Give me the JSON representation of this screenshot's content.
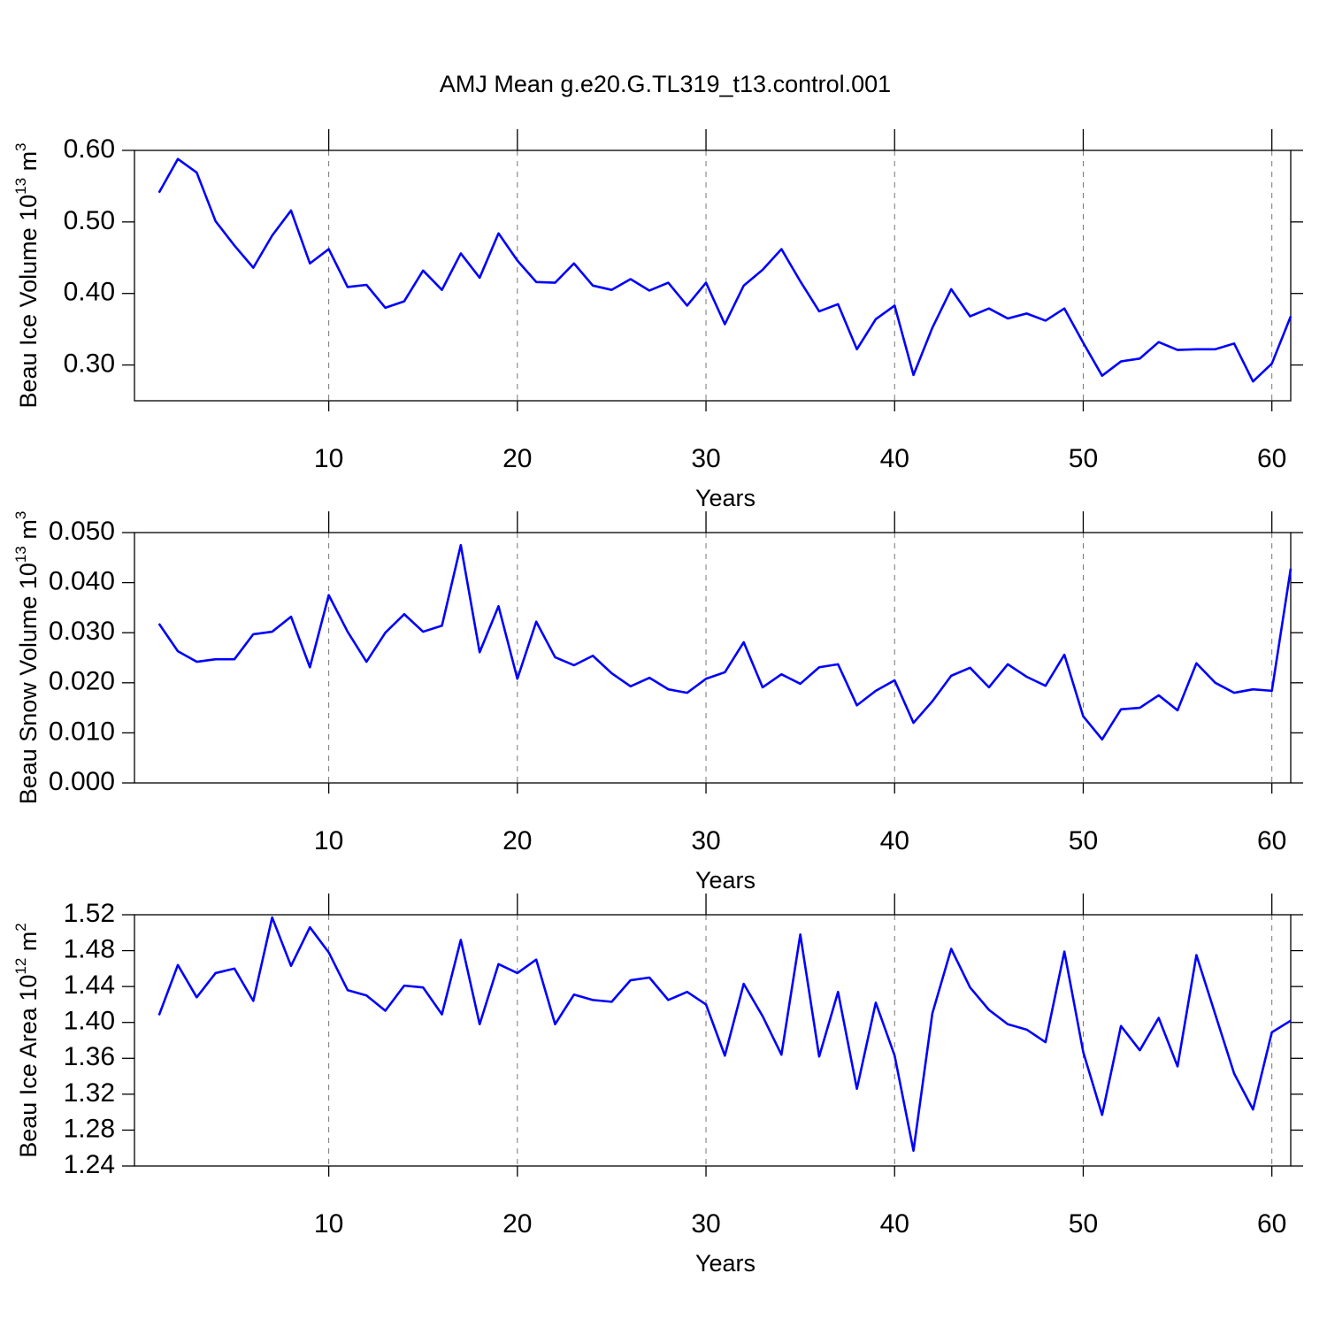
{
  "chart_data": [
    {
      "type": "line",
      "title": "AMJ Mean g.e20.G.TL319_t13.control.001",
      "y_label": [
        "Beau Ice Volume 10",
        "13",
        " m",
        "3"
      ],
      "x_label": "Years",
      "x": [
        1,
        2,
        3,
        4,
        5,
        6,
        7,
        8,
        9,
        10,
        11,
        12,
        13,
        14,
        15,
        16,
        17,
        18,
        19,
        20,
        21,
        22,
        23,
        24,
        25,
        26,
        27,
        28,
        29,
        30,
        31,
        32,
        33,
        34,
        35,
        36,
        37,
        38,
        39,
        40,
        41,
        42,
        43,
        44,
        45,
        46,
        47,
        48,
        49,
        50,
        51,
        52,
        53,
        54,
        55,
        56,
        57,
        58,
        59,
        60,
        61
      ],
      "values": [
        0.541,
        0.588,
        0.569,
        0.501,
        0.467,
        0.436,
        0.481,
        0.516,
        0.442,
        0.462,
        0.409,
        0.412,
        0.38,
        0.389,
        0.432,
        0.405,
        0.456,
        0.422,
        0.484,
        0.446,
        0.416,
        0.415,
        0.442,
        0.411,
        0.405,
        0.42,
        0.404,
        0.415,
        0.383,
        0.415,
        0.357,
        0.411,
        0.433,
        0.462,
        0.417,
        0.375,
        0.385,
        0.322,
        0.364,
        0.383,
        0.286,
        0.352,
        0.406,
        0.368,
        0.379,
        0.365,
        0.372,
        0.362,
        0.379,
        0.331,
        0.285,
        0.305,
        0.309,
        0.332,
        0.321,
        0.322,
        0.322,
        0.33,
        0.277,
        0.302,
        0.368
      ],
      "color": "#0000ff",
      "xlim": [
        -0.3,
        61
      ],
      "xticks": [
        10,
        20,
        30,
        40,
        50,
        60
      ],
      "ylim": [
        0.25,
        0.6
      ],
      "yticks": [
        {
          "value": 0.3,
          "label": "0.30"
        },
        {
          "value": 0.4,
          "label": "0.40"
        },
        {
          "value": 0.5,
          "label": "0.50"
        },
        {
          "value": 0.6,
          "label": "0.60"
        }
      ],
      "grid": "x"
    },
    {
      "type": "line",
      "y_label": [
        "Beau Snow Volume 10",
        "13",
        " m",
        "3"
      ],
      "x_label": "Years",
      "x": [
        1,
        2,
        3,
        4,
        5,
        6,
        7,
        8,
        9,
        10,
        11,
        12,
        13,
        14,
        15,
        16,
        17,
        18,
        19,
        20,
        21,
        22,
        23,
        24,
        25,
        26,
        27,
        28,
        29,
        30,
        31,
        32,
        33,
        34,
        35,
        36,
        37,
        38,
        39,
        40,
        41,
        42,
        43,
        44,
        45,
        46,
        47,
        48,
        49,
        50,
        51,
        52,
        53,
        54,
        55,
        56,
        57,
        58,
        59,
        60,
        61
      ],
      "values": [
        0.0318,
        0.0263,
        0.0242,
        0.0247,
        0.0247,
        0.0297,
        0.0302,
        0.0332,
        0.0231,
        0.0375,
        0.0302,
        0.0242,
        0.03,
        0.0337,
        0.0302,
        0.0314,
        0.0475,
        0.0261,
        0.0353,
        0.0208,
        0.0322,
        0.0251,
        0.0235,
        0.0254,
        0.0219,
        0.0193,
        0.021,
        0.0187,
        0.018,
        0.0208,
        0.0221,
        0.0281,
        0.0191,
        0.0217,
        0.0198,
        0.0231,
        0.0237,
        0.0155,
        0.0184,
        0.0205,
        0.012,
        0.0163,
        0.0214,
        0.023,
        0.0191,
        0.0237,
        0.0212,
        0.0194,
        0.0256,
        0.0133,
        0.0087,
        0.0147,
        0.015,
        0.0175,
        0.0145,
        0.0239,
        0.02,
        0.018,
        0.0187,
        0.0184,
        0.0428
      ],
      "color": "#0000ff",
      "xlim": [
        -0.3,
        61
      ],
      "xticks": [
        10,
        20,
        30,
        40,
        50,
        60
      ],
      "ylim": [
        0,
        0.05
      ],
      "yticks": [
        {
          "value": 0,
          "label": "0.000"
        },
        {
          "value": 0.01,
          "label": "0.010"
        },
        {
          "value": 0.02,
          "label": "0.020"
        },
        {
          "value": 0.03,
          "label": "0.030"
        },
        {
          "value": 0.04,
          "label": "0.040"
        },
        {
          "value": 0.05,
          "label": "0.050"
        }
      ],
      "grid": "x"
    },
    {
      "type": "line",
      "y_label": [
        "Beau Ice Area 10",
        "12",
        " m",
        "2"
      ],
      "x_label": "Years",
      "x": [
        1,
        2,
        3,
        4,
        5,
        6,
        7,
        8,
        9,
        10,
        11,
        12,
        13,
        14,
        15,
        16,
        17,
        18,
        19,
        20,
        21,
        22,
        23,
        24,
        25,
        26,
        27,
        28,
        29,
        30,
        31,
        32,
        33,
        34,
        35,
        36,
        37,
        38,
        39,
        40,
        41,
        42,
        43,
        44,
        45,
        46,
        47,
        48,
        49,
        50,
        51,
        52,
        53,
        54,
        55,
        56,
        57,
        58,
        59,
        60,
        61
      ],
      "values": [
        1.408,
        1.464,
        1.428,
        1.455,
        1.46,
        1.424,
        1.517,
        1.463,
        1.506,
        1.478,
        1.436,
        1.43,
        1.413,
        1.441,
        1.439,
        1.409,
        1.492,
        1.398,
        1.465,
        1.455,
        1.47,
        1.398,
        1.431,
        1.425,
        1.423,
        1.447,
        1.45,
        1.425,
        1.434,
        1.42,
        1.363,
        1.443,
        1.407,
        1.364,
        1.498,
        1.362,
        1.434,
        1.326,
        1.422,
        1.363,
        1.257,
        1.41,
        1.482,
        1.439,
        1.414,
        1.398,
        1.392,
        1.378,
        1.479,
        1.367,
        1.297,
        1.396,
        1.369,
        1.405,
        1.351,
        1.475,
        1.409,
        1.343,
        1.303,
        1.389,
        1.402
      ],
      "color": "#0000ff",
      "xlim": [
        -0.3,
        61
      ],
      "xticks": [
        10,
        20,
        30,
        40,
        50,
        60
      ],
      "ylim": [
        1.24,
        1.52
      ],
      "yticks": [
        1.24,
        1.28,
        1.32,
        1.36,
        {
          "value": 1.4,
          "label": "1.40"
        },
        1.44,
        1.48,
        1.52
      ],
      "grid": "x"
    }
  ]
}
